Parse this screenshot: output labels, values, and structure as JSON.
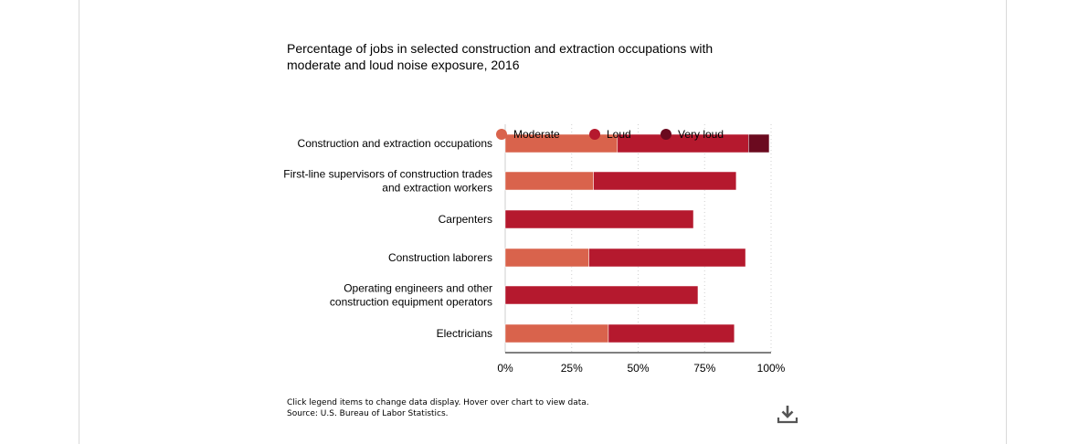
{
  "title": "Percentage of jobs in selected construction and extraction occupations with moderate and loud noise exposure, 2016",
  "footer": {
    "instructions": "Click legend items to change data display. Hover over chart to view data.",
    "source": "Source: U.S. Bureau of Labor Statistics."
  },
  "icons": {
    "download": "download-icon"
  },
  "chart_data": {
    "type": "bar",
    "orientation": "horizontal",
    "stacked": true,
    "categories": [
      [
        "Construction and extraction occupations"
      ],
      [
        "First-line supervisors of construction trades",
        "and extraction workers"
      ],
      [
        "Carpenters"
      ],
      [
        "Construction laborers"
      ],
      [
        "Operating engineers and other",
        "construction equipment operators"
      ],
      [
        "Electricians"
      ]
    ],
    "series": [
      {
        "name": "Moderate",
        "color": "#d9634c",
        "values": [
          42.2,
          33.2,
          null,
          31.5,
          null,
          38.8
        ]
      },
      {
        "name": "Loud",
        "color": "#b5192e",
        "values": [
          49.3,
          53.7,
          70.8,
          58.9,
          72.5,
          47.4
        ]
      },
      {
        "name": "Very loud",
        "color": "#6b0a1f",
        "values": [
          7.8,
          null,
          null,
          null,
          null,
          null
        ]
      }
    ],
    "x_ticks": [
      "0%",
      "25%",
      "50%",
      "75%",
      "100%"
    ],
    "xlim": [
      0,
      100
    ],
    "legend_position": "top",
    "grid": true
  }
}
